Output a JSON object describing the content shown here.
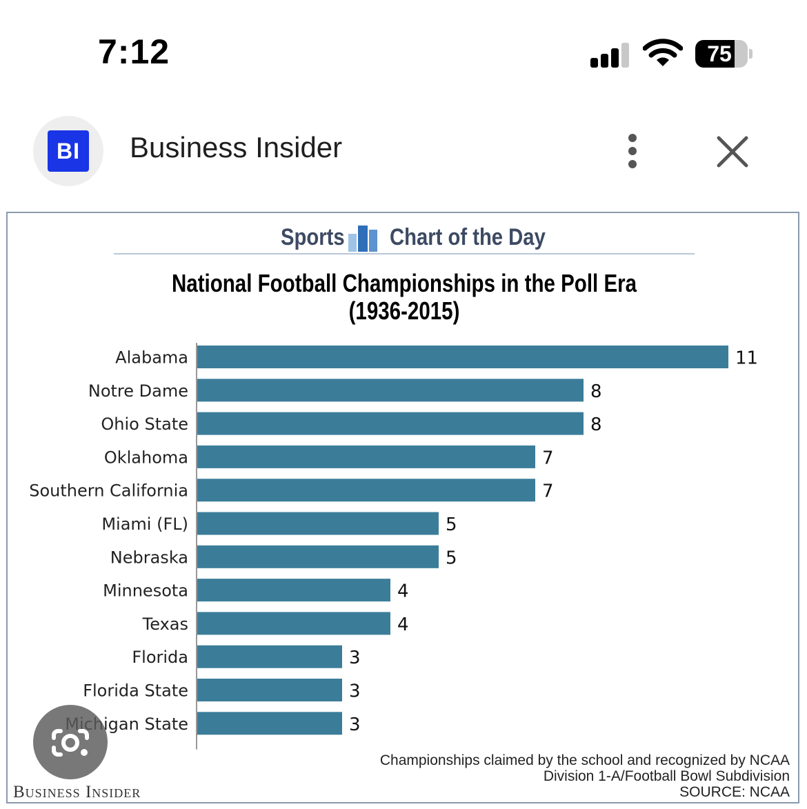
{
  "status_bar": {
    "time": "7:12",
    "battery": "75",
    "battery_level": 75
  },
  "header": {
    "logo_text": "BI",
    "site_title": "Business Insider"
  },
  "chart_card": {
    "kicker_left": "Sports",
    "kicker_right": "Chart of the Day",
    "footnote_lines": [
      "Championships claimed by the school and recognized by NCAA",
      "Division 1-A/Football Bowl Subdivision",
      "SOURCE: NCAA"
    ],
    "brand": "Business Insider"
  },
  "chart_data": {
    "type": "bar",
    "orientation": "horizontal",
    "title": "National Football Championships in the Poll Era",
    "subtitle": "(1936-2015)",
    "categories": [
      "Alabama",
      "Notre Dame",
      "Ohio State",
      "Oklahoma",
      "Southern California",
      "Miami (FL)",
      "Nebraska",
      "Minnesota",
      "Texas",
      "Florida",
      "Florida State",
      "Michigan State"
    ],
    "values": [
      11,
      8,
      8,
      7,
      7,
      5,
      5,
      4,
      4,
      3,
      3,
      3
    ],
    "xlabel": "",
    "ylabel": "",
    "xlim": [
      0,
      11
    ],
    "bar_color": "#3b7d99",
    "grid": false
  }
}
